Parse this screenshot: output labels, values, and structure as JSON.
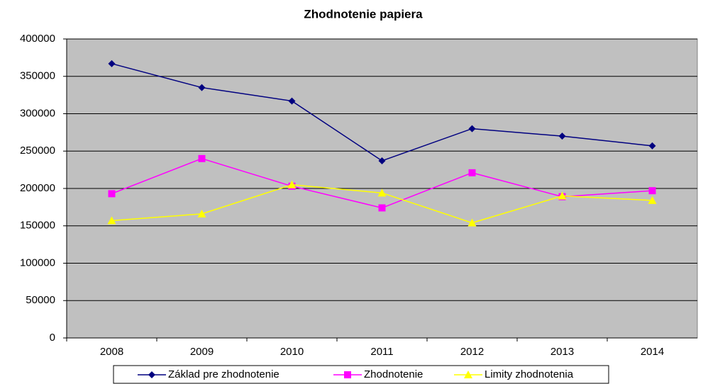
{
  "chart_data": {
    "type": "line",
    "title": "Zhodnotenie papiera",
    "categories": [
      "2008",
      "2009",
      "2010",
      "2011",
      "2012",
      "2013",
      "2014"
    ],
    "series": [
      {
        "name": "Základ pre zhodnotenie",
        "color": "#000080",
        "marker": "diamond",
        "values": [
          367000,
          335000,
          317000,
          237000,
          280000,
          270000,
          257000
        ]
      },
      {
        "name": "Zhodnotenie",
        "color": "#ff00ff",
        "marker": "square",
        "values": [
          193000,
          240000,
          203000,
          174000,
          221000,
          189000,
          197000
        ]
      },
      {
        "name": "Limity zhodnotenia",
        "color": "#ffff00",
        "marker": "triangle",
        "values": [
          157000,
          166000,
          205000,
          194000,
          154000,
          190000,
          184000
        ]
      }
    ],
    "ylim": [
      0,
      400000
    ],
    "yticks": [
      0,
      50000,
      100000,
      150000,
      200000,
      250000,
      300000,
      350000,
      400000
    ],
    "grid": true,
    "legend": "bottom"
  }
}
